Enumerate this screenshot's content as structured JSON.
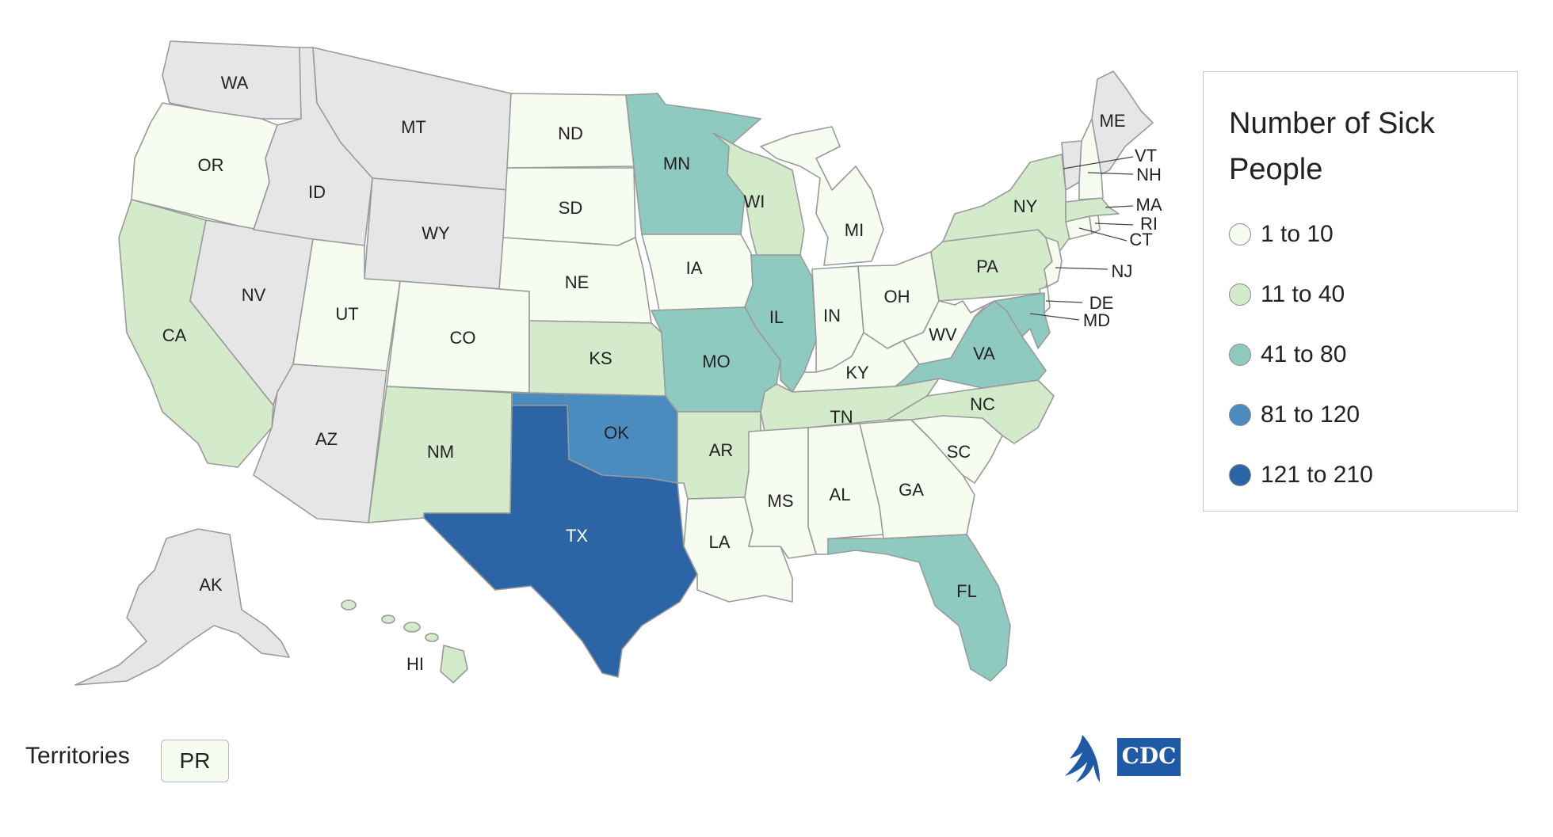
{
  "legend": {
    "title": "Number of Sick People",
    "items": [
      {
        "label": "1 to 10",
        "color": "#f7fcf0"
      },
      {
        "label": "11 to 40",
        "color": "#d3ebca"
      },
      {
        "label": "41 to 80",
        "color": "#8ecac0"
      },
      {
        "label": "81 to 120",
        "color": "#4a8bc0"
      },
      {
        "label": "121 to 210",
        "color": "#2b65a5"
      }
    ]
  },
  "no_data_color": "#e6e6e6",
  "territories": {
    "label": "Territories",
    "items": [
      {
        "abbr": "PR",
        "category": "1 to 10"
      }
    ]
  },
  "logo": {
    "text": "CDC"
  },
  "states": {
    "WA": "none",
    "OR": "1 to 10",
    "CA": "11 to 40",
    "NV": "none",
    "ID": "none",
    "MT": "none",
    "WY": "none",
    "UT": "1 to 10",
    "AZ": "none",
    "CO": "1 to 10",
    "NM": "11 to 40",
    "ND": "1 to 10",
    "SD": "1 to 10",
    "NE": "1 to 10",
    "KS": "11 to 40",
    "OK": "81 to 120",
    "TX": "121 to 210",
    "MN": "41 to 80",
    "IA": "1 to 10",
    "MO": "41 to 80",
    "AR": "11 to 40",
    "LA": "1 to 10",
    "WI": "11 to 40",
    "IL": "41 to 80",
    "MI": "1 to 10",
    "IN": "1 to 10",
    "OH": "1 to 10",
    "KY": "1 to 10",
    "TN": "11 to 40",
    "MS": "1 to 10",
    "AL": "1 to 10",
    "GA": "1 to 10",
    "FL": "41 to 80",
    "SC": "1 to 10",
    "NC": "11 to 40",
    "VA": "41 to 80",
    "WV": "1 to 10",
    "PA": "11 to 40",
    "NY": "11 to 40",
    "NJ": "1 to 10",
    "DE": "1 to 10",
    "MD": "41 to 80",
    "CT": "1 to 10",
    "RI": "1 to 10",
    "MA": "11 to 40",
    "VT": "none",
    "NH": "1 to 10",
    "ME": "none",
    "AK": "none",
    "HI": "11 to 40"
  }
}
